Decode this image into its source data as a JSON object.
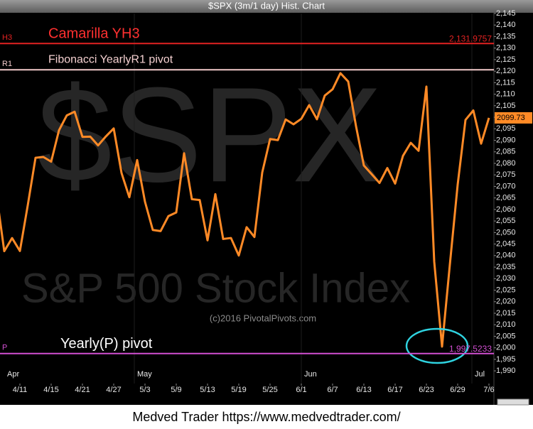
{
  "chart_data": {
    "type": "line",
    "title": "$SPX (3m/1 day) Hist. Chart",
    "watermark": "$SPX",
    "subtitle": "S&P 500 Stock Index",
    "credit": "(c)2016 PivotalPivots.com",
    "footer": "Medved Trader https://www.medvedtrader.com/",
    "month_labels": [
      "Apr",
      "May",
      "Jun",
      "Jul"
    ],
    "categories": [
      null,
      null,
      null,
      "4/11",
      null,
      null,
      null,
      "4/15",
      null,
      null,
      null,
      "4/21",
      null,
      null,
      null,
      "4/27",
      null,
      null,
      null,
      "5/3",
      null,
      null,
      null,
      "5/9",
      null,
      null,
      null,
      "5/13",
      null,
      null,
      null,
      "5/19",
      null,
      null,
      null,
      "5/25",
      null,
      null,
      null,
      "6/1",
      null,
      null,
      null,
      "6/7",
      null,
      null,
      null,
      "6/13",
      null,
      null,
      null,
      "6/17",
      null,
      null,
      null,
      "6/23",
      null,
      null,
      null,
      "6/29",
      null,
      null,
      null,
      "7/6"
    ],
    "series": [
      {
        "name": "$SPX",
        "color": "#ff8a26",
        "values": [
          2066.66,
          2041.91,
          2047.6,
          2041.99,
          2061.72,
          2082.42,
          2082.78,
          2080.73,
          2094.34,
          2100.8,
          2102.4,
          2091.48,
          2091.58,
          2087.79,
          2091.7,
          2095.15,
          2075.81,
          2065.3,
          2081.43,
          2063.37,
          2051.12,
          2050.63,
          2057.14,
          2058.69,
          2084.39,
          2064.46,
          2064.11,
          2046.61,
          2066.66,
          2047.21,
          2047.63,
          2040.04,
          2052.32,
          2048.04,
          2076.06,
          2090.54,
          2090.1,
          2099.06,
          2096.95,
          2099.33,
          2105.26,
          2099.13,
          2109.41,
          2112.13,
          2119.12,
          2115.48,
          2096.07,
          2079.06,
          2075.32,
          2071.5,
          2077.99,
          2071.22,
          2083.25,
          2088.9,
          2085.45,
          2113.32,
          2037.41,
          2000.54,
          2036.09,
          2070.77,
          2098.86,
          2102.95,
          2088.55,
          2099.73
        ]
      }
    ],
    "levels": [
      {
        "name": "H3",
        "label": "Camarilla YH3",
        "value": 2131.9757,
        "value_label": "2,131.9757",
        "color": "#e32222",
        "label_color": "#ff3030"
      },
      {
        "name": "R1",
        "label": "Fibonacci YearlyR1 pivot",
        "value": 2120.6,
        "color": "#f2caca",
        "label_color": "#f4d0d0"
      },
      {
        "name": "P",
        "label": "Yearly(P) pivot",
        "value": 1997.5233,
        "value_label": "1,997.5233",
        "color": "#d24fd2",
        "label_color": "#ffffff"
      }
    ],
    "ylim": [
      1984.5,
      2145
    ],
    "yticks": [
      {
        "value": 1990,
        "label": "1,990"
      },
      {
        "value": 1995,
        "label": "1,995"
      },
      {
        "value": 2000,
        "label": "2,000"
      },
      {
        "value": 2005,
        "label": "2,005"
      },
      {
        "value": 2010,
        "label": "2,010"
      },
      {
        "value": 2015,
        "label": "2,015"
      },
      {
        "value": 2020,
        "label": "2,020"
      },
      {
        "value": 2025,
        "label": "2,025"
      },
      {
        "value": 2030,
        "label": "2,030"
      },
      {
        "value": 2035,
        "label": "2,035"
      },
      {
        "value": 2040,
        "label": "2,040"
      },
      {
        "value": 2045,
        "label": "2,045"
      },
      {
        "value": 2050,
        "label": "2,050"
      },
      {
        "value": 2055,
        "label": "2,055"
      },
      {
        "value": 2060,
        "label": "2,060"
      },
      {
        "value": 2065,
        "label": "2,065"
      },
      {
        "value": 2070,
        "label": "2,070"
      },
      {
        "value": 2075,
        "label": "2,075"
      },
      {
        "value": 2080,
        "label": "2,080"
      },
      {
        "value": 2085,
        "label": "2,085"
      },
      {
        "value": 2090,
        "label": "2,090"
      },
      {
        "value": 2095,
        "label": "2,095"
      },
      {
        "value": 2100,
        "label": "2,100"
      },
      {
        "value": 2105,
        "label": "2,105"
      },
      {
        "value": 2110,
        "label": "2,110"
      },
      {
        "value": 2115,
        "label": "2,115"
      },
      {
        "value": 2120,
        "label": "2,120"
      },
      {
        "value": 2125,
        "label": "2,125"
      },
      {
        "value": 2130,
        "label": "2,130"
      },
      {
        "value": 2135,
        "label": "2,135"
      },
      {
        "value": 2140,
        "label": "2,140"
      },
      {
        "value": 2145,
        "label": "2,145"
      }
    ]
  }
}
